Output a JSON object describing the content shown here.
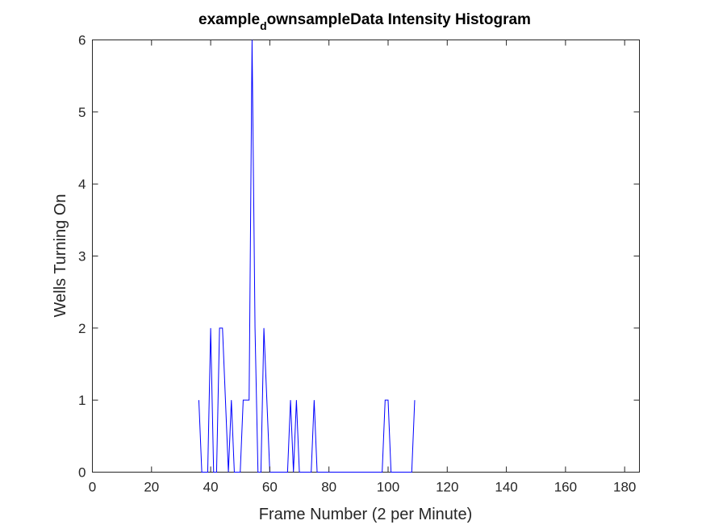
{
  "chart_data": {
    "type": "line",
    "title": {
      "prefix": "example",
      "subscript": "d",
      "suffix": "ownsampleData Intensity Histogram"
    },
    "xlabel": "Frame Number (2 per Minute)",
    "ylabel": "Wells Turning On",
    "xlim": [
      0,
      185
    ],
    "ylim": [
      0,
      6
    ],
    "xticks": [
      0,
      20,
      40,
      60,
      80,
      100,
      120,
      140,
      160,
      180
    ],
    "yticks": [
      0,
      1,
      2,
      3,
      4,
      5,
      6
    ],
    "grid": false,
    "box": true,
    "series": [
      {
        "color": "#0000ff",
        "x": [
          36,
          37,
          38,
          39,
          40,
          41,
          42,
          43,
          44,
          45,
          46,
          47,
          48,
          49,
          50,
          51,
          52,
          53,
          54,
          55,
          56,
          57,
          58,
          59,
          60,
          61,
          62,
          63,
          64,
          65,
          66,
          67,
          68,
          69,
          70,
          71,
          72,
          73,
          74,
          75,
          76,
          77,
          78,
          79,
          80,
          81,
          82,
          83,
          84,
          85,
          86,
          87,
          88,
          89,
          90,
          91,
          92,
          93,
          94,
          95,
          96,
          97,
          98,
          99,
          100,
          101,
          102,
          103,
          104,
          105,
          106,
          107,
          108,
          109
        ],
        "y": [
          1,
          0,
          0,
          0,
          2,
          0,
          0,
          2,
          2,
          1,
          0,
          1,
          0,
          0,
          0,
          1,
          1,
          1,
          6,
          2,
          0,
          0,
          2,
          1,
          0,
          0,
          0,
          0,
          0,
          0,
          0,
          1,
          0,
          1,
          0,
          0,
          0,
          0,
          0,
          1,
          0,
          0,
          0,
          0,
          0,
          0,
          0,
          0,
          0,
          0,
          0,
          0,
          0,
          0,
          0,
          0,
          0,
          0,
          0,
          0,
          0,
          0,
          0,
          1,
          1,
          0,
          0,
          0,
          0,
          0,
          0,
          0,
          0,
          1
        ]
      }
    ]
  }
}
